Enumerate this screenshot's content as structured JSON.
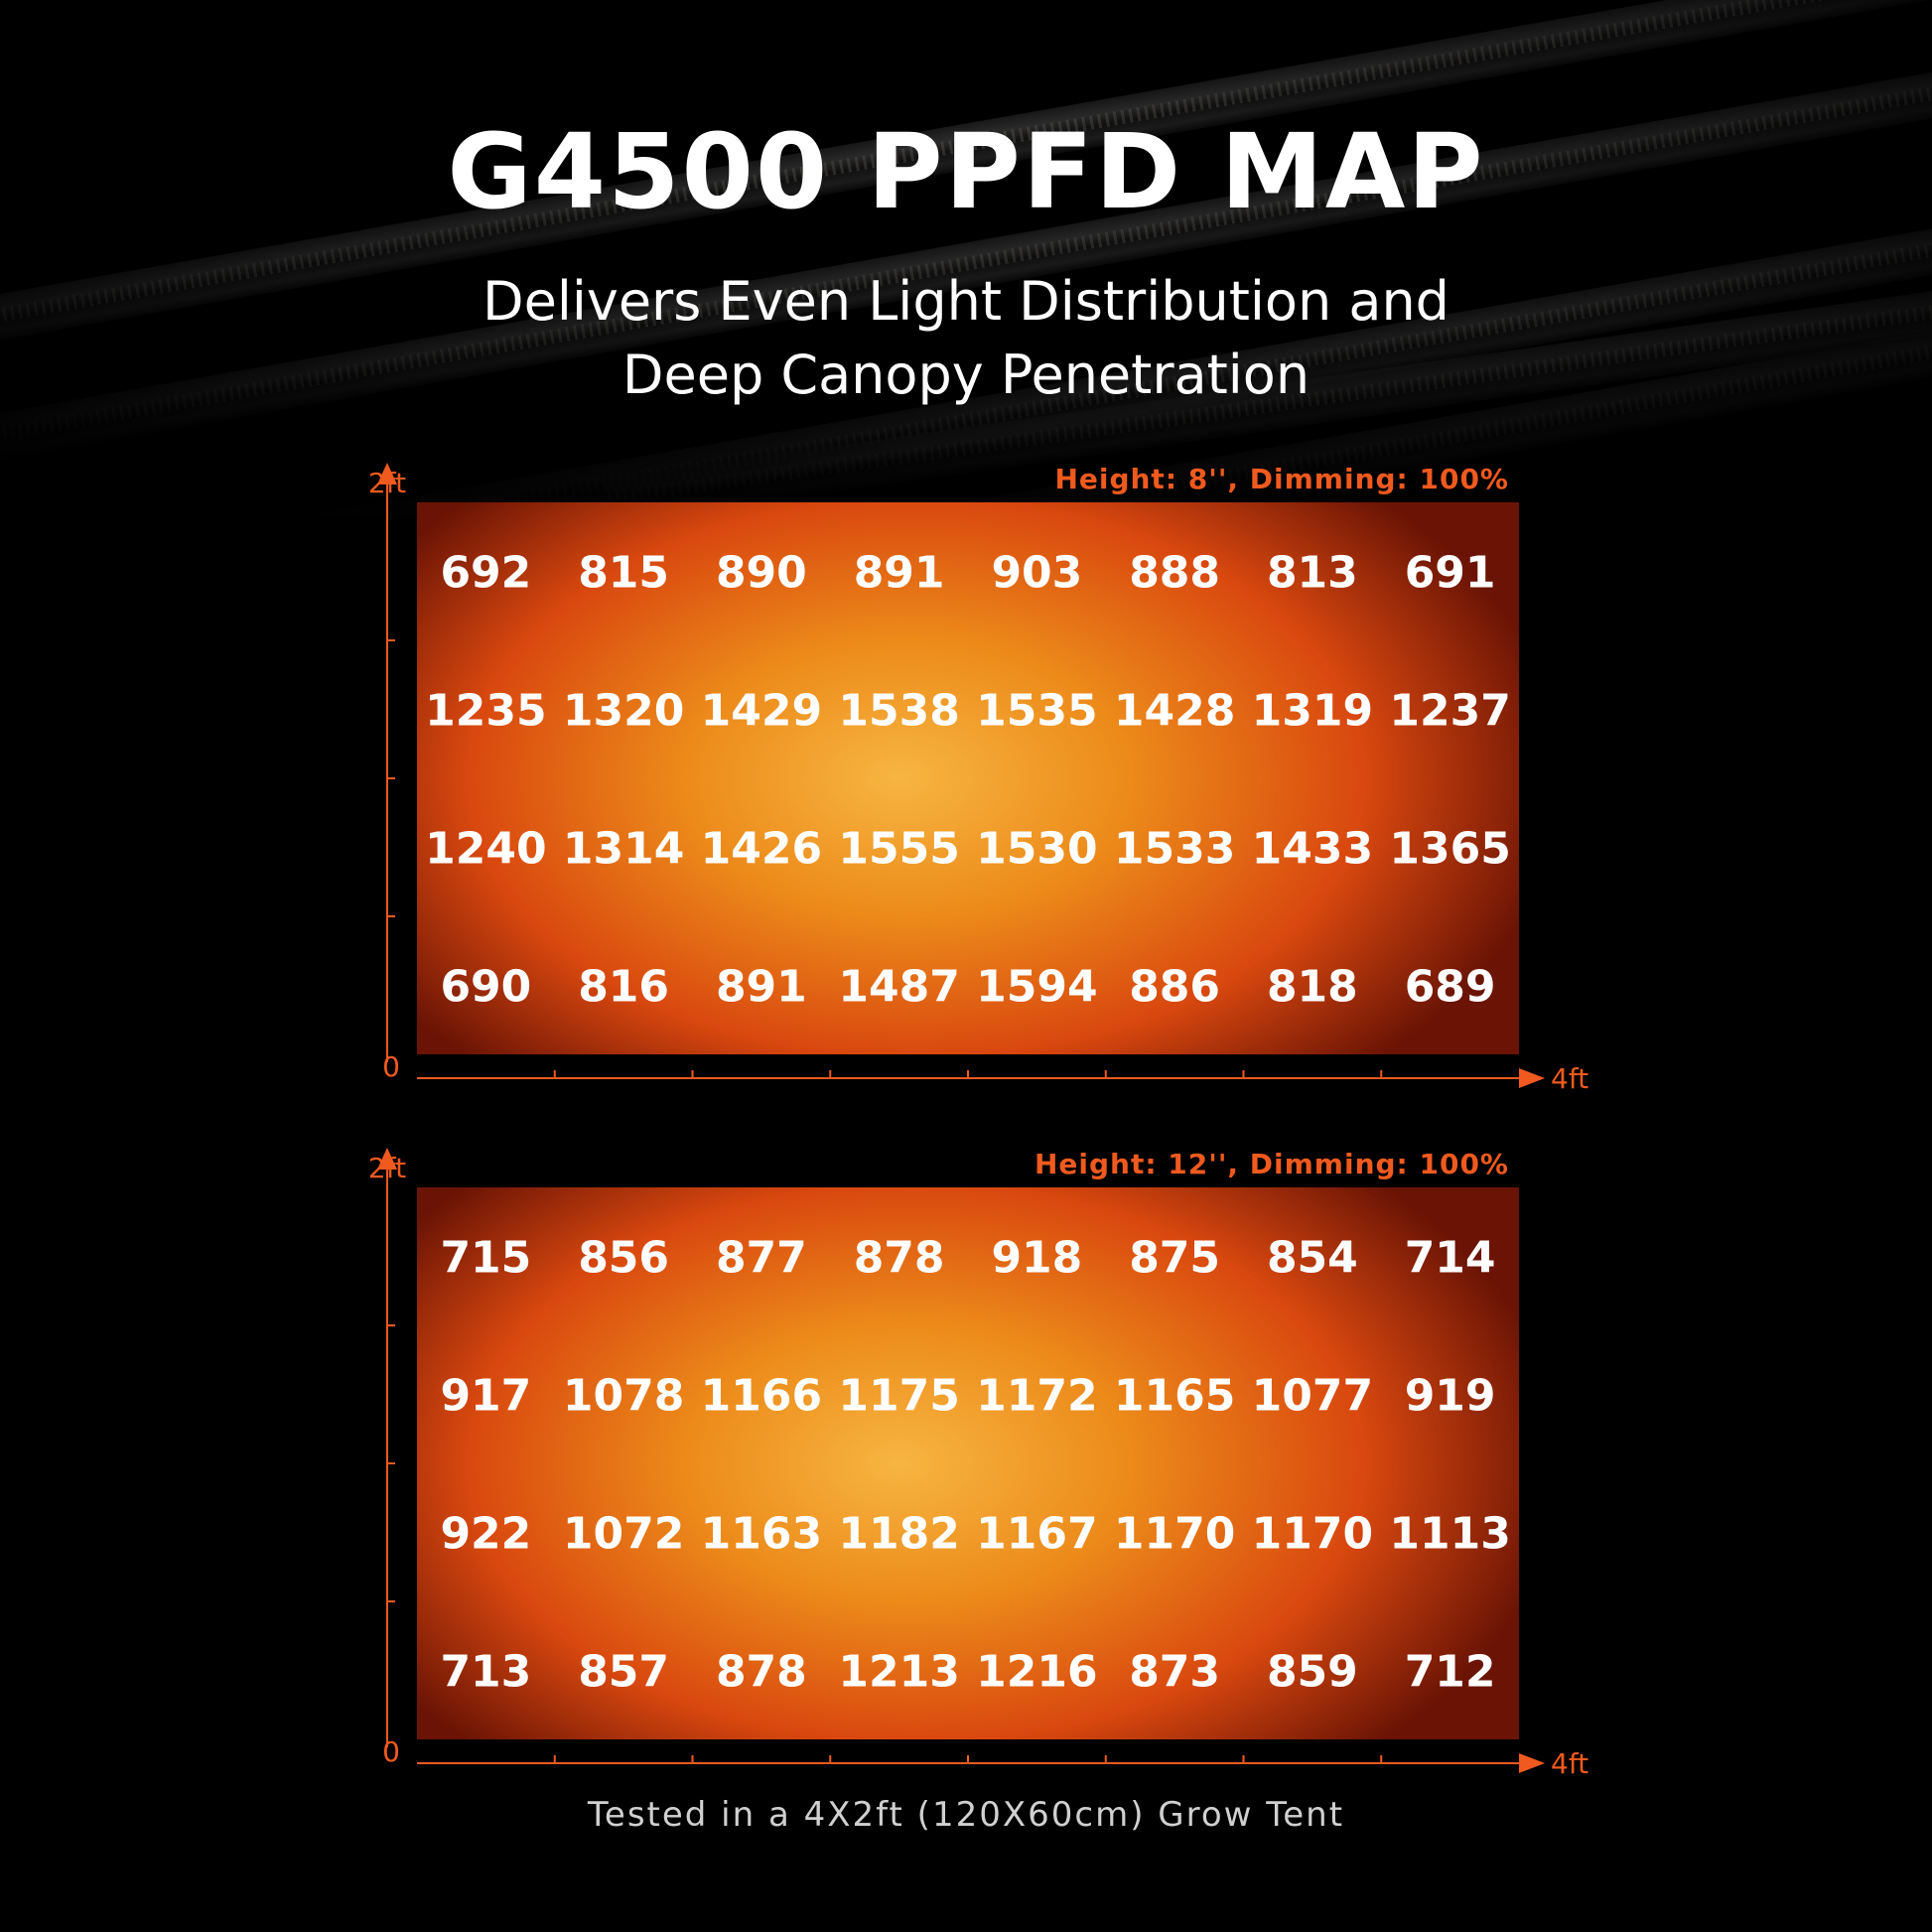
{
  "title": "G4500 PPFD MAP",
  "subtitle_line1": "Delivers Even Light Distribution and",
  "subtitle_line2": "Deep Canopy Penetration",
  "footer": "Tested in a 4X2ft (120X60cm) Grow Tent",
  "colors": {
    "accent": "#f05a1e",
    "heat_center": "#f7b541",
    "heat_mid": "#d9480f",
    "heat_edge": "#6b1405"
  },
  "chart_data": [
    {
      "type": "heatmap",
      "title": "Height: 8'', Dimming: 100%",
      "x_axis": {
        "min_label": "",
        "max_label": "4ft"
      },
      "y_axis": {
        "min_label": "0",
        "max_label": "2ft"
      },
      "grid": false,
      "rows": [
        [
          692,
          815,
          890,
          891,
          903,
          888,
          813,
          691
        ],
        [
          1235,
          1320,
          1429,
          1538,
          1535,
          1428,
          1319,
          1237
        ],
        [
          1240,
          1314,
          1426,
          1555,
          1530,
          1533,
          1433,
          1365
        ],
        [
          690,
          816,
          891,
          1487,
          1594,
          886,
          818,
          689
        ]
      ]
    },
    {
      "type": "heatmap",
      "title": "Height: 12'', Dimming: 100%",
      "x_axis": {
        "min_label": "0",
        "max_label": "4ft"
      },
      "y_axis": {
        "min_label": "",
        "max_label": "2ft"
      },
      "grid": false,
      "rows": [
        [
          715,
          856,
          877,
          878,
          918,
          875,
          854,
          714
        ],
        [
          917,
          1078,
          1166,
          1175,
          1172,
          1165,
          1077,
          919
        ],
        [
          922,
          1072,
          1163,
          1182,
          1167,
          1170,
          1170,
          1113
        ],
        [
          713,
          857,
          878,
          1213,
          1216,
          873,
          859,
          712
        ]
      ]
    }
  ]
}
